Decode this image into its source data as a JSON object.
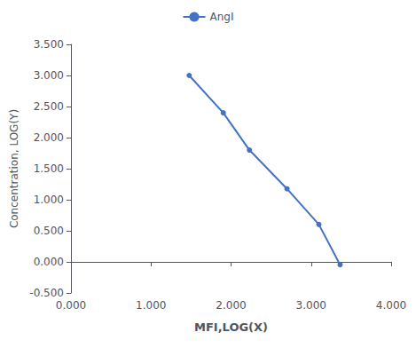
{
  "chart_data": {
    "type": "line",
    "x": [
      1.477,
      1.903,
      2.23,
      2.699,
      3.097,
      3.362
    ],
    "series": [
      {
        "name": "AngI",
        "color": "#4472C4",
        "marker": "circle",
        "line_style": "solid",
        "values": [
          3.0,
          2.398,
          1.799,
          1.176,
          0.602,
          -0.046
        ]
      }
    ],
    "xlabel": "MFI,LOG(X)",
    "ylabel": "Concentration, LOG(Y)",
    "xlim": [
      0.0,
      4.0
    ],
    "ylim": [
      -0.5,
      3.5
    ],
    "xticks": [
      {
        "value": 0.0,
        "label": "0.000"
      },
      {
        "value": 1.0,
        "label": "1.000"
      },
      {
        "value": 2.0,
        "label": "2.000"
      },
      {
        "value": 3.0,
        "label": "3.000"
      },
      {
        "value": 4.0,
        "label": "4.000"
      }
    ],
    "yticks": [
      {
        "value": -0.5,
        "label": "-0.500"
      },
      {
        "value": 0.0,
        "label": "0.000"
      },
      {
        "value": 0.5,
        "label": "0.500"
      },
      {
        "value": 1.0,
        "label": "1.000"
      },
      {
        "value": 1.5,
        "label": "1.500"
      },
      {
        "value": 2.0,
        "label": "2.000"
      },
      {
        "value": 2.5,
        "label": "2.500"
      },
      {
        "value": 3.0,
        "label": "3.000"
      },
      {
        "value": 3.5,
        "label": "3.500"
      }
    ],
    "legend": "top",
    "grid": false
  }
}
